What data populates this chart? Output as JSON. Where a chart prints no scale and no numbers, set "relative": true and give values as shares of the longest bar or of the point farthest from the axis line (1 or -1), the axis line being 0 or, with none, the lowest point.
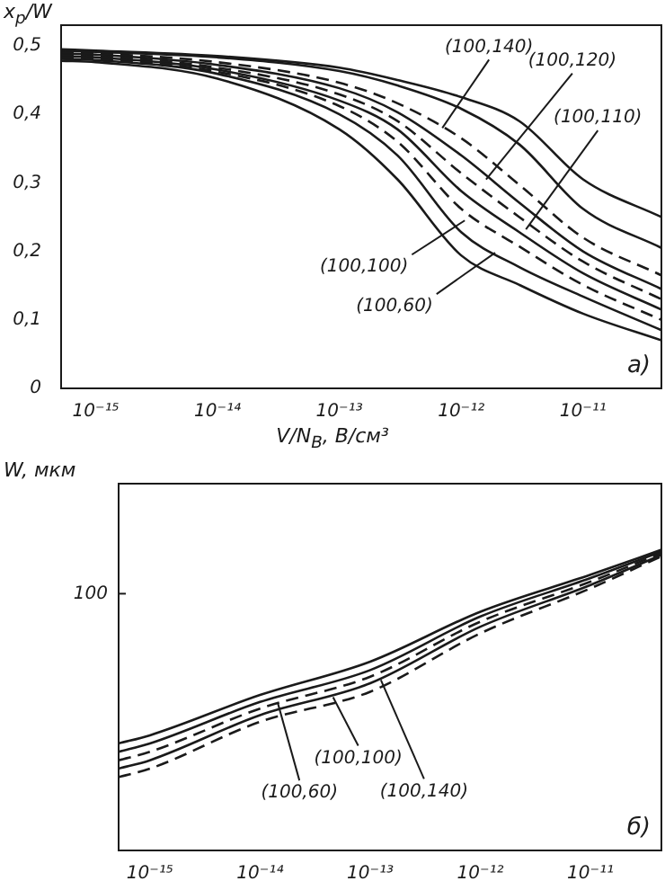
{
  "chart_data": [
    {
      "type": "line",
      "ylabel": "x$_{p}$/W",
      "xlabel": "V/N$_{B}$, В/см³",
      "log": "x",
      "line_style": "solid",
      "x": [
        5.2e-16,
        1e-15,
        1e-14,
        1e-13,
        3e-13,
        1e-12,
        3e-12,
        1e-11,
        4.4e-11
      ],
      "xlim": [
        5.2e-16,
        4.4e-11
      ],
      "xticks": [
        {
          "value": 1e-15,
          "label": "10⁻¹⁵"
        },
        {
          "value": 1e-14,
          "label": "10⁻¹⁴"
        },
        {
          "value": 1e-13,
          "label": "10⁻¹³"
        },
        {
          "value": 1e-12,
          "label": "10⁻¹²"
        },
        {
          "value": 1e-11,
          "label": "10⁻¹¹"
        }
      ],
      "ylim": [
        0,
        0.53
      ],
      "yticks": [
        0,
        {
          "value": 0.1,
          "label": "0,1"
        },
        {
          "value": 0.2,
          "label": "0,2"
        },
        {
          "value": 0.3,
          "label": "0,3"
        },
        {
          "value": 0.4,
          "label": "0,4"
        },
        {
          "value": 0.5,
          "label": "0,5"
        }
      ],
      "series": [
        {
          "color": "#1a1a1a",
          "values": [
            0.495,
            0.493,
            0.485,
            0.468,
            0.45,
            0.425,
            0.39,
            0.305,
            0.25
          ]
        },
        {
          "color": "#1a1a1a",
          "values": [
            0.493,
            0.491,
            0.483,
            0.463,
            0.442,
            0.408,
            0.356,
            0.262,
            0.205
          ]
        },
        {
          "color": "#1a1a1a",
          "line_style": "dashed",
          "values": [
            0.491,
            0.489,
            0.476,
            0.446,
            0.416,
            0.365,
            0.297,
            0.22,
            0.165
          ]
        },
        {
          "color": "#1a1a1a",
          "values": [
            0.489,
            0.487,
            0.472,
            0.438,
            0.403,
            0.34,
            0.271,
            0.2,
            0.145
          ]
        },
        {
          "color": "#1a1a1a",
          "line_style": "dashed",
          "values": [
            0.487,
            0.485,
            0.468,
            0.429,
            0.39,
            0.314,
            0.25,
            0.185,
            0.13
          ]
        },
        {
          "color": "#1a1a1a",
          "values": [
            0.485,
            0.483,
            0.465,
            0.42,
            0.378,
            0.288,
            0.228,
            0.168,
            0.115
          ]
        },
        {
          "color": "#1a1a1a",
          "line_style": "dashed",
          "values": [
            0.483,
            0.481,
            0.462,
            0.412,
            0.36,
            0.262,
            0.207,
            0.151,
            0.1
          ]
        },
        {
          "color": "#1a1a1a",
          "values": [
            0.481,
            0.479,
            0.459,
            0.4,
            0.34,
            0.228,
            0.177,
            0.134,
            0.085
          ]
        },
        {
          "color": "#1a1a1a",
          "values": [
            0.478,
            0.476,
            0.452,
            0.378,
            0.305,
            0.194,
            0.151,
            0.109,
            0.07
          ]
        }
      ],
      "annotations": [
        {
          "text": "(100,140)",
          "x": 7e-13,
          "y": 0.38
        },
        {
          "text": "(100,120)",
          "x": 1.6e-12,
          "y": 0.305
        },
        {
          "text": "(100,110)",
          "x": 3.4e-12,
          "y": 0.232
        },
        {
          "text": "(100,100)",
          "x": 1.07e-12,
          "y": 0.245
        },
        {
          "text": "(100,60)",
          "x": 1.9e-12,
          "y": 0.198
        },
        "а)"
      ]
    },
    {
      "type": "line",
      "ylabel": "W, мкм",
      "log": "x",
      "relative": true,
      "line_style": "solid",
      "x": [
        5.2e-16,
        1e-15,
        1e-14,
        1e-13,
        1e-12,
        1e-11,
        4.4e-11
      ],
      "xlim": [
        5.2e-16,
        4.4e-11
      ],
      "xticks": [
        {
          "value": 1e-15,
          "label": "10⁻¹⁵"
        },
        {
          "value": 1e-14,
          "label": "10⁻¹⁴"
        },
        {
          "value": 1e-13,
          "label": "10⁻¹³"
        },
        {
          "value": 1e-12,
          "label": "10⁻¹²"
        },
        {
          "value": 1e-11,
          "label": "10⁻¹¹"
        }
      ],
      "series": [
        {
          "color": "#1a1a1a",
          "values": [
            0.356,
            0.383,
            0.517,
            0.628,
            0.794,
            0.917,
            1
          ]
        },
        {
          "color": "#1a1a1a",
          "values": [
            0.328,
            0.356,
            0.494,
            0.6,
            0.778,
            0.906,
            0.994
          ]
        },
        {
          "color": "#1a1a1a",
          "line_style": "dashed",
          "values": [
            0.3,
            0.328,
            0.472,
            0.578,
            0.761,
            0.894,
            0.989
          ]
        },
        {
          "color": "#1a1a1a",
          "values": [
            0.272,
            0.3,
            0.45,
            0.556,
            0.744,
            0.883,
            0.983
          ]
        },
        {
          "color": "#1a1a1a",
          "line_style": "dashed",
          "values": [
            0.244,
            0.272,
            0.428,
            0.528,
            0.722,
            0.872,
            0.978
          ]
        }
      ],
      "annotations": [
        {
          "text": "(100,60)",
          "x": 1.45e-14,
          "y": 0.49
        },
        {
          "text": "(100,100)",
          "x": 4.6e-14,
          "y": 0.51
        },
        {
          "text": "(100,140)",
          "x": 1.25e-13,
          "y": 0.567
        },
        "100",
        "б)"
      ]
    }
  ]
}
